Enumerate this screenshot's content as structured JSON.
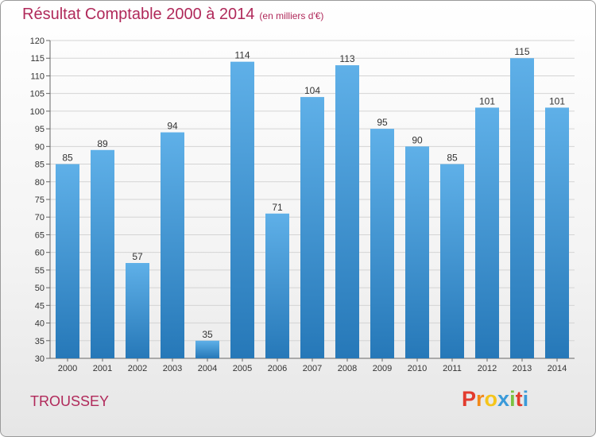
{
  "header": {
    "title": "Résultat Comptable 2000 à 2014",
    "subtitle": "(en milliers d'€)"
  },
  "footer": {
    "place": "TROUSSEY",
    "logo": "Proxiti"
  },
  "colors": {
    "title": "#b0295a",
    "bar_top": "#5fb0e8",
    "bar_bottom": "#2678b8",
    "logo_letters": [
      "#e23b2e",
      "#f28a1a",
      "#f5c51b",
      "#3a9ad9",
      "#7cc142",
      "#e23b2e",
      "#3a9ad9"
    ]
  },
  "chart_data": {
    "type": "bar",
    "title": "Résultat Comptable 2000 à 2014",
    "subtitle": "(en milliers d'€)",
    "xlabel": "",
    "ylabel": "",
    "categories": [
      "2000",
      "2001",
      "2002",
      "2003",
      "2004",
      "2005",
      "2006",
      "2007",
      "2008",
      "2009",
      "2010",
      "2011",
      "2012",
      "2013",
      "2014"
    ],
    "values": [
      85,
      89,
      57,
      94,
      35,
      114,
      71,
      104,
      113,
      95,
      90,
      85,
      101,
      115,
      101
    ],
    "ylim": [
      30,
      120
    ],
    "yticks": [
      30,
      35,
      40,
      45,
      50,
      55,
      60,
      65,
      70,
      75,
      80,
      85,
      90,
      95,
      100,
      105,
      110,
      115,
      120
    ],
    "grid": true,
    "legend": "none"
  }
}
